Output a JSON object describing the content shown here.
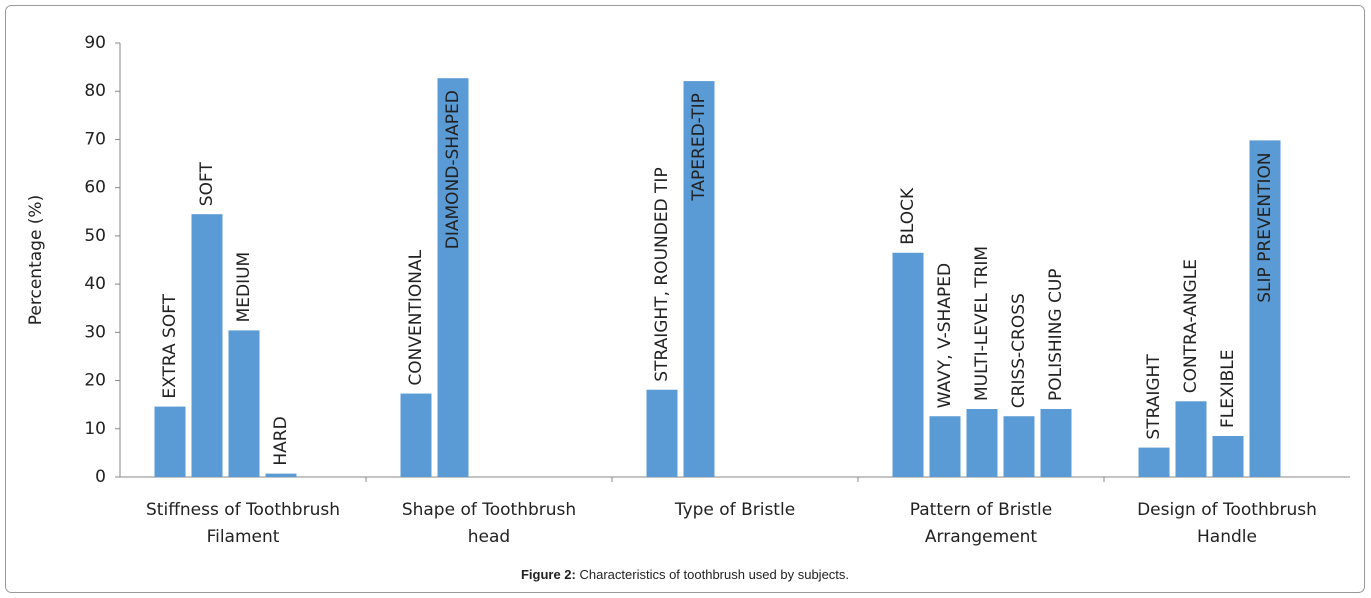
{
  "chart_data": {
    "type": "bar",
    "ylabel": "Percentage (%)",
    "ylim": [
      0,
      90
    ],
    "yticks": [
      0,
      10,
      20,
      30,
      40,
      50,
      60,
      70,
      80,
      90
    ],
    "color": "#5b9bd5",
    "categories": [
      {
        "label": [
          "Stiffness of Toothbrush",
          "Filament"
        ],
        "bars": [
          "EXTRA SOFT",
          "SOFT",
          "MEDIUM",
          "HARD"
        ],
        "values": [
          14.6,
          54.5,
          30.4,
          0.7
        ]
      },
      {
        "label": [
          "Shape of Toothbrush",
          "head"
        ],
        "bars": [
          "CONVENTIONAL",
          "DIAMOND-SHAPED"
        ],
        "values": [
          17.3,
          82.7
        ]
      },
      {
        "label": [
          "Type of Bristle"
        ],
        "bars": [
          "STRAIGHT, ROUNDED TIP",
          "TAPERED-TIP"
        ],
        "values": [
          18.1,
          82.1
        ]
      },
      {
        "label": [
          "Pattern of Bristle",
          "Arrangement"
        ],
        "bars": [
          "BLOCK",
          "WAVY, V-SHAPED",
          "MULTI-LEVEL TRIM",
          "CRISS-CROSS",
          "POLISHING CUP"
        ],
        "values": [
          46.5,
          12.6,
          14.1,
          12.6,
          14.1
        ]
      },
      {
        "label": [
          "Design of Toothbrush",
          "Handle"
        ],
        "bars": [
          "STRAIGHT",
          "CONTRA-ANGLE",
          "FLEXIBLE",
          "SLIP PREVENTION"
        ],
        "values": [
          6.1,
          15.7,
          8.5,
          69.8
        ]
      }
    ],
    "caption": {
      "label": "Figure 2:",
      "text": "Characteristics of toothbrush used by subjects."
    }
  }
}
